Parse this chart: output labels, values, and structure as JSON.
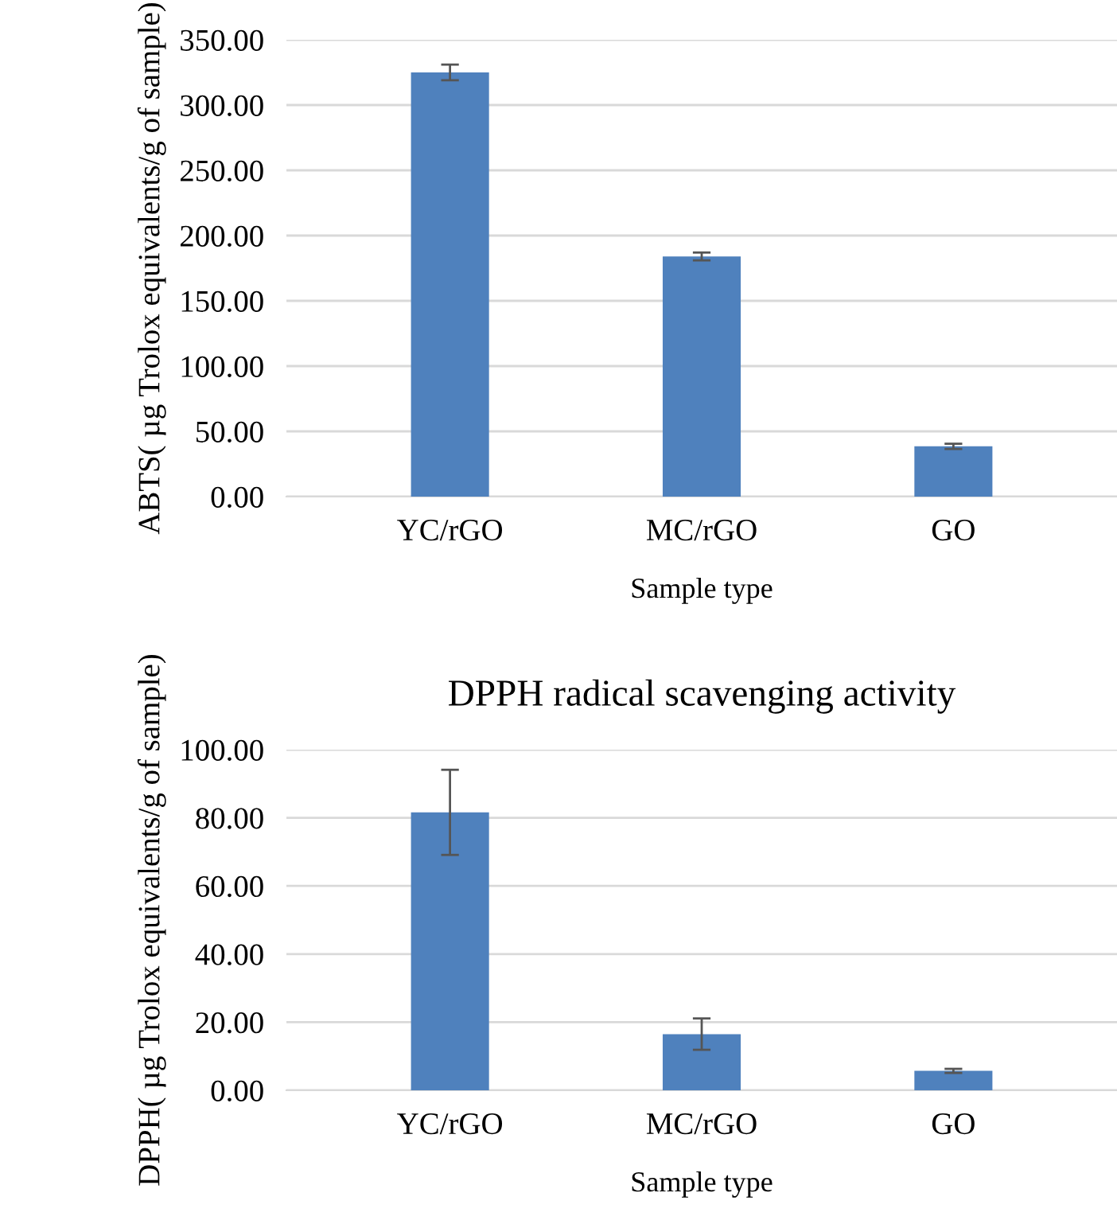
{
  "chart_data": [
    {
      "type": "bar",
      "categories": [
        "YC/rGO",
        "MC/rGO",
        "GO"
      ],
      "values": [
        325,
        184,
        38.5
      ],
      "errors": [
        6,
        3,
        2
      ],
      "color": "#4f81bd",
      "xlabel": "Sample type",
      "ylabel": "ABTS( µg Trolox equivalents/g of sample)",
      "ylim": [
        0,
        350
      ],
      "yticks": [
        {
          "value": 0,
          "label": "0.00"
        },
        {
          "value": 50,
          "label": "50.00"
        },
        {
          "value": 100,
          "label": "100.00"
        },
        {
          "value": 150,
          "label": "150.00"
        },
        {
          "value": 200,
          "label": "200.00"
        },
        {
          "value": 250,
          "label": "250.00"
        },
        {
          "value": 300,
          "label": "300.00"
        },
        {
          "value": 350,
          "label": "350.00"
        }
      ],
      "grid": "y"
    },
    {
      "type": "bar",
      "title": "DPPH radical scavenging activity",
      "categories": [
        "YC/rGO",
        "MC/rGO",
        "GO"
      ],
      "values": [
        81.6,
        16.5,
        5.7
      ],
      "errors": [
        12.5,
        4.6,
        0.6
      ],
      "color": "#4f81bd",
      "xlabel": "Sample type",
      "ylabel": "DPPH( µg Trolox equivalents/g of sample)",
      "ylim": [
        0,
        100
      ],
      "yticks": [
        {
          "value": 0,
          "label": "0.00"
        },
        {
          "value": 20,
          "label": "20.00"
        },
        {
          "value": 40,
          "label": "40.00"
        },
        {
          "value": 60,
          "label": "60.00"
        },
        {
          "value": 80,
          "label": "80.00"
        },
        {
          "value": 100,
          "label": "100.00"
        }
      ],
      "grid": "y"
    }
  ]
}
